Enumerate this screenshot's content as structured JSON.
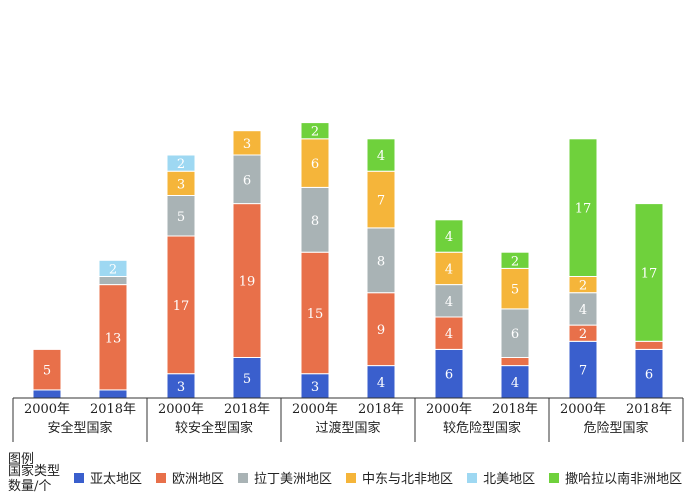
{
  "chart_data": {
    "type": "bar",
    "stacked": true,
    "groups": [
      {
        "name": "安全型国家",
        "years": [
          "2000年",
          "2018年"
        ]
      },
      {
        "name": "较安全型国家",
        "years": [
          "2000年",
          "2018年"
        ]
      },
      {
        "name": "过渡型国家",
        "years": [
          "2000年",
          "2018年"
        ]
      },
      {
        "name": "较危险型国家",
        "years": [
          "2000年",
          "2018年"
        ]
      },
      {
        "name": "危险型国家",
        "years": [
          "2000年",
          "2018年"
        ]
      }
    ],
    "categories": [
      "2000年",
      "2018年",
      "2000年",
      "2018年",
      "2000年",
      "2018年",
      "2000年",
      "2018年",
      "2000年",
      "2018年"
    ],
    "series": [
      {
        "name": "亚太地区",
        "color": "#3a5fcd",
        "values": [
          1,
          1,
          3,
          5,
          3,
          4,
          6,
          4,
          7,
          6
        ]
      },
      {
        "name": "欧洲地区",
        "color": "#e8704a",
        "values": [
          5,
          13,
          17,
          19,
          15,
          9,
          4,
          1,
          2,
          1
        ]
      },
      {
        "name": "拉丁美洲地区",
        "color": "#a9b3b5",
        "values": [
          0,
          1,
          5,
          6,
          8,
          8,
          4,
          6,
          4,
          0
        ]
      },
      {
        "name": "中东与北非地区",
        "color": "#f5b53a",
        "values": [
          0,
          0,
          3,
          3,
          6,
          7,
          4,
          5,
          2,
          0
        ]
      },
      {
        "name": "北美地区",
        "color": "#9ed8f2",
        "values": [
          0,
          2,
          2,
          0,
          0,
          0,
          0,
          0,
          0,
          0
        ]
      },
      {
        "name": "撒哈拉以南非洲地区",
        "color": "#6fd13c",
        "values": [
          0,
          0,
          0,
          0,
          2,
          4,
          4,
          2,
          17,
          17
        ]
      }
    ],
    "data_labels": [
      [
        "",
        "",
        "3",
        "5",
        "3",
        "4",
        "6",
        "4",
        "7",
        "6"
      ],
      [
        "5",
        "13",
        "17",
        "19",
        "15",
        "9",
        "4",
        "",
        "2",
        ""
      ],
      [
        "",
        "",
        "5",
        "6",
        "8",
        "8",
        "4",
        "6",
        "4",
        ""
      ],
      [
        "",
        "",
        "3",
        "3",
        "6",
        "7",
        "4",
        "5",
        "2",
        ""
      ],
      [
        "",
        "2",
        "2",
        "",
        "",
        "",
        "",
        "",
        "",
        ""
      ],
      [
        "",
        "",
        "",
        "",
        "2",
        "4",
        "4",
        "2",
        "17",
        "17"
      ]
    ],
    "ylim": [
      0,
      35
    ],
    "legend": {
      "title": "图例",
      "subtitle": "国家类型数量/个",
      "placement": "bottom"
    }
  }
}
